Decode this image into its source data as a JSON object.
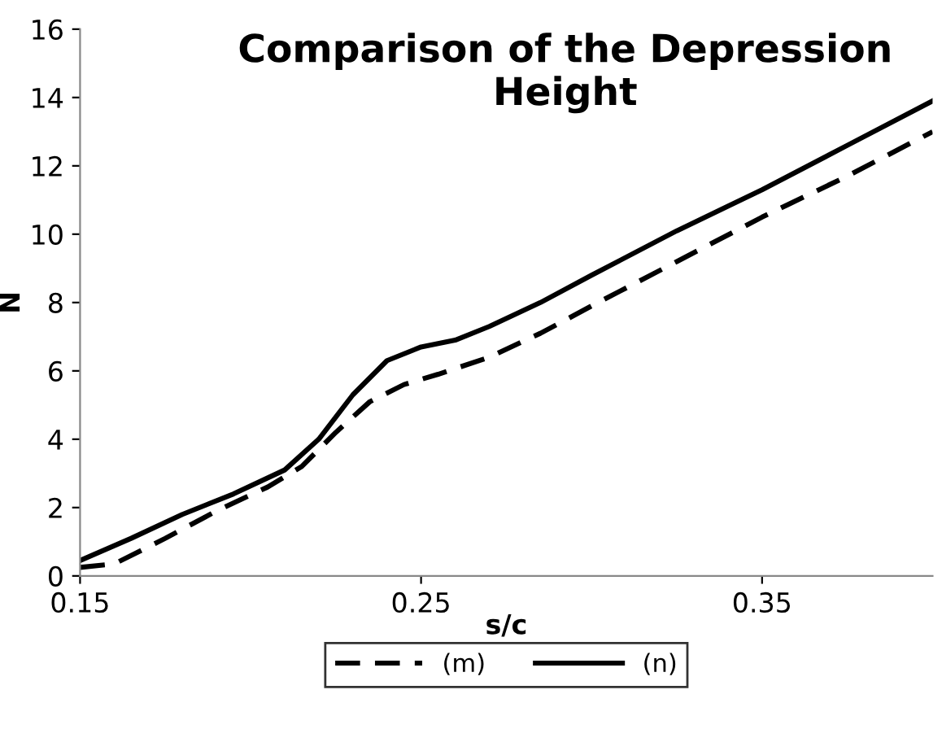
{
  "chart_data": {
    "type": "line",
    "title": "Comparison of the Depression Height",
    "xlabel": "s/c",
    "ylabel": "N",
    "xlim": [
      0.15,
      0.4
    ],
    "xticks": [
      0.15,
      0.25,
      0.35
    ],
    "ylim": [
      0,
      16
    ],
    "yticks": [
      0,
      2,
      4,
      6,
      8,
      10,
      12,
      14,
      16
    ],
    "grid": false,
    "legend": "bottom",
    "series": [
      {
        "name": "(m)",
        "color": "#000000",
        "line_style": "dashed",
        "x": [
          0.15,
          0.16,
          0.175,
          0.19,
          0.205,
          0.215,
          0.225,
          0.235,
          0.245,
          0.255,
          0.27,
          0.285,
          0.3,
          0.325,
          0.35,
          0.375,
          0.4
        ],
        "values": [
          0.25,
          0.35,
          1.1,
          1.9,
          2.6,
          3.2,
          4.2,
          5.1,
          5.6,
          5.9,
          6.4,
          7.1,
          7.9,
          9.2,
          10.5,
          11.7,
          13.0
        ]
      },
      {
        "name": "(n)",
        "color": "#000000",
        "line_style": "solid",
        "x": [
          0.15,
          0.165,
          0.18,
          0.195,
          0.21,
          0.22,
          0.23,
          0.24,
          0.25,
          0.26,
          0.27,
          0.285,
          0.3,
          0.325,
          0.35,
          0.375,
          0.4
        ],
        "values": [
          0.45,
          1.1,
          1.8,
          2.4,
          3.1,
          4.0,
          5.3,
          6.3,
          6.7,
          6.9,
          7.3,
          8.0,
          8.8,
          10.1,
          11.3,
          12.6,
          13.9
        ]
      }
    ]
  }
}
